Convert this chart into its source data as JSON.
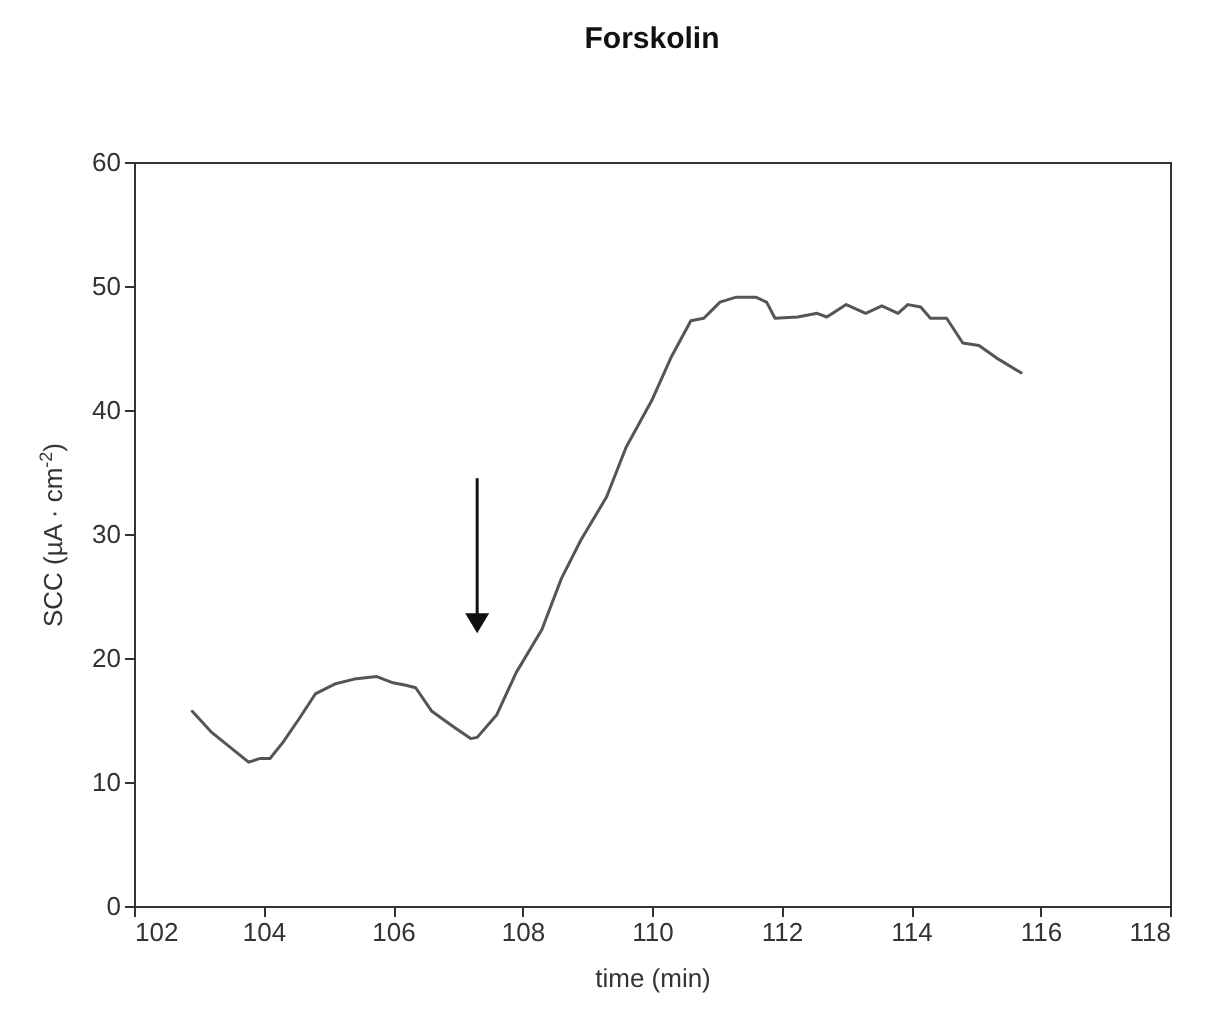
{
  "chart_data": {
    "type": "line",
    "title": "Forskolin",
    "xlabel": "time (min)",
    "ylabel": "SCC (µA · cm$^{-2}$)",
    "x": [
      102.9,
      103.2,
      103.77,
      103.95,
      104.1,
      104.3,
      104.55,
      104.8,
      105.1,
      105.4,
      105.75,
      106.0,
      106.2,
      106.35,
      106.6,
      106.95,
      107.2,
      107.3,
      107.6,
      107.9,
      108.3,
      108.6,
      108.9,
      109.3,
      109.6,
      110.0,
      110.3,
      110.6,
      110.8,
      111.05,
      111.3,
      111.6,
      111.77,
      111.9,
      112.25,
      112.55,
      112.7,
      113.0,
      113.3,
      113.55,
      113.8,
      113.95,
      114.15,
      114.3,
      114.55,
      114.8,
      115.05,
      115.35,
      115.7
    ],
    "series": [
      {
        "color": "#555555",
        "values": [
          15.7,
          14.0,
          11.6,
          11.9,
          11.9,
          13.2,
          15.1,
          17.1,
          17.9,
          18.3,
          18.5,
          18.0,
          17.8,
          17.6,
          15.7,
          14.4,
          13.5,
          13.6,
          15.4,
          18.8,
          22.3,
          26.4,
          29.5,
          33.0,
          37.0,
          40.8,
          44.3,
          47.2,
          47.4,
          48.7,
          49.1,
          49.1,
          48.7,
          47.4,
          47.5,
          47.8,
          47.5,
          48.5,
          47.8,
          48.4,
          47.8,
          48.5,
          48.3,
          47.4,
          47.4,
          45.4,
          45.2,
          44.1,
          43.0
        ]
      }
    ],
    "xlim": [
      102,
      118
    ],
    "xticks": [
      102,
      104,
      106,
      108,
      110,
      112,
      114,
      116,
      118
    ],
    "ylim": [
      0,
      60
    ],
    "yticks": [
      0,
      10,
      20,
      30,
      40,
      50,
      60
    ],
    "grid": false,
    "marker": "none",
    "line_style": "solid"
  }
}
